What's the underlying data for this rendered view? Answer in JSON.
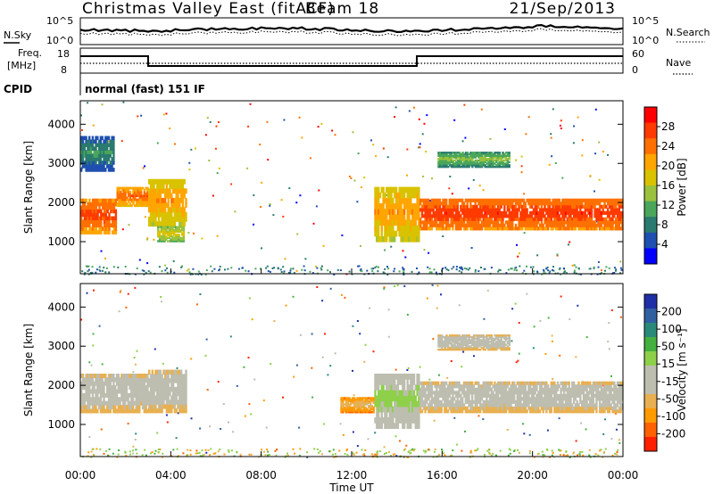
{
  "header": {
    "station": "Christmas Valley East (fitACF)",
    "beam": "Beam 18",
    "date": "21/Sep/2013"
  },
  "noise_panel": {
    "left_label": "N.Sky",
    "right_label": "N.Search",
    "left_ticks": [
      "10^5",
      "10^0"
    ],
    "right_ticks": [
      "10^5",
      "10^0"
    ]
  },
  "freq_panel": {
    "left_label_1": "Freq.",
    "left_label_2": "[MHz]",
    "right_label": "Nave",
    "left_ticks": [
      "18",
      "8"
    ],
    "right_ticks": [
      "60",
      "0"
    ]
  },
  "cpid": {
    "label": "CPID",
    "text": "normal (fast) 151 IF"
  },
  "power_panel": {
    "ylabel": "Slant Range [km]",
    "cbar_label": "Power [dB]",
    "cbar_ticks": [
      "28",
      "24",
      "20",
      "16",
      "12",
      "8",
      "4"
    ],
    "cbar_colors": [
      "#ff0000",
      "#ff3b00",
      "#ff7000",
      "#ffa500",
      "#d9c200",
      "#9ac23c",
      "#4aa65a",
      "#2a7a70",
      "#1f4fb0",
      "#0000ff"
    ]
  },
  "velocity_panel": {
    "ylabel": "Slant Range [km]",
    "cbar_label": "Velocity [m s⁻¹]",
    "cbar_ticks": [
      "200",
      "100",
      "50",
      "15",
      "-15",
      "-50",
      "-100",
      "-200"
    ],
    "cbar_colors": [
      "#1f2fa8",
      "#3060a0",
      "#2a8a7a",
      "#44b040",
      "#8ed04a",
      "#bdbdb0",
      "#bdbdb0",
      "#e8b050",
      "#ff9a00",
      "#ff6000",
      "#ff2000"
    ]
  },
  "time_axis": {
    "xlabel": "Time UT",
    "ticks": [
      "00:00",
      "04:00",
      "08:00",
      "12:00",
      "16:00",
      "20:00",
      "00:00"
    ]
  },
  "range_ticks": [
    "1000",
    "2000",
    "3000",
    "4000"
  ],
  "chart_data": [
    {
      "type": "heatmap",
      "title": "Christmas Valley East (fitACF) Beam 18 21/Sep/2013",
      "quantity": "Power [dB]",
      "xlabel": "Time UT",
      "ylabel": "Slant Range [km]",
      "xlim_hours": [
        0,
        24
      ],
      "ylim_km": [
        180,
        4600
      ],
      "clim": [
        0,
        32
      ],
      "bands": [
        {
          "t0": 0.0,
          "t1": 1.6,
          "r_lo": 1200,
          "r_hi": 2100,
          "value": 27
        },
        {
          "t0": 1.6,
          "t1": 3.0,
          "r_lo": 1900,
          "r_hi": 2400,
          "value": 25
        },
        {
          "t0": 3.0,
          "t1": 4.7,
          "r_lo": 1400,
          "r_hi": 2600,
          "value": 22
        },
        {
          "t0": 3.4,
          "t1": 4.6,
          "r_lo": 1000,
          "r_hi": 1400,
          "value": 18
        },
        {
          "t0": 13.0,
          "t1": 15.0,
          "r_lo": 1000,
          "r_hi": 2400,
          "value": 22
        },
        {
          "t0": 15.0,
          "t1": 24.0,
          "r_lo": 1300,
          "r_hi": 2100,
          "value": 28
        },
        {
          "t0": 15.8,
          "t1": 19.0,
          "r_lo": 2900,
          "r_hi": 3300,
          "value": 14
        },
        {
          "t0": 0.0,
          "t1": 1.5,
          "r_lo": 2800,
          "r_hi": 3700,
          "value": 10
        }
      ]
    },
    {
      "type": "heatmap",
      "title": "Christmas Valley East (fitACF) Beam 18 21/Sep/2013",
      "quantity": "Velocity [m s-1]",
      "xlabel": "Time UT",
      "ylabel": "Slant Range [km]",
      "xlim_hours": [
        0,
        24
      ],
      "ylim_km": [
        180,
        4600
      ],
      "clim": [
        -200,
        200
      ],
      "bands": [
        {
          "t0": 0.0,
          "t1": 3.0,
          "r_lo": 1300,
          "r_hi": 2300,
          "value": 0
        },
        {
          "t0": 3.0,
          "t1": 4.7,
          "r_lo": 1300,
          "r_hi": 2400,
          "value": 0
        },
        {
          "t0": 13.0,
          "t1": 15.0,
          "r_lo": 900,
          "r_hi": 2300,
          "value": 40
        },
        {
          "t0": 15.0,
          "t1": 24.0,
          "r_lo": 1300,
          "r_hi": 2100,
          "value": 0
        },
        {
          "t0": 15.8,
          "t1": 19.0,
          "r_lo": 2900,
          "r_hi": 3300,
          "value": 0
        },
        {
          "t0": 11.5,
          "t1": 13.0,
          "r_lo": 1300,
          "r_hi": 1700,
          "value": -60
        }
      ]
    }
  ]
}
